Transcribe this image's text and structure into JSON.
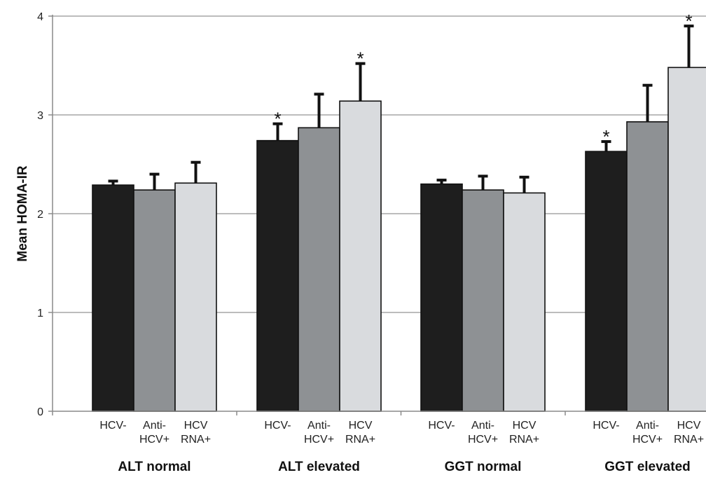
{
  "chart_data": {
    "type": "bar",
    "title": "",
    "ylabel": "Mean HOMA-IR",
    "ylim": [
      0,
      4
    ],
    "yticks": [
      0,
      1,
      2,
      3,
      4
    ],
    "grid": true,
    "groups": [
      {
        "label": "ALT normal",
        "bars": [
          {
            "label_lines": [
              "HCV-"
            ],
            "value": 2.29,
            "error": 0.04,
            "significant": false,
            "color": "#1e1e1e"
          },
          {
            "label_lines": [
              "Anti-",
              "HCV+"
            ],
            "value": 2.24,
            "error": 0.16,
            "significant": false,
            "color": "#8e9194"
          },
          {
            "label_lines": [
              "HCV",
              "RNA+"
            ],
            "value": 2.31,
            "error": 0.21,
            "significant": false,
            "color": "#d9dbde"
          }
        ]
      },
      {
        "label": "ALT elevated",
        "bars": [
          {
            "label_lines": [
              "HCV-"
            ],
            "value": 2.74,
            "error": 0.17,
            "significant": true,
            "color": "#1e1e1e"
          },
          {
            "label_lines": [
              "Anti-",
              "HCV+"
            ],
            "value": 2.87,
            "error": 0.34,
            "significant": false,
            "color": "#8e9194"
          },
          {
            "label_lines": [
              "HCV",
              "RNA+"
            ],
            "value": 3.14,
            "error": 0.38,
            "significant": true,
            "color": "#d9dbde"
          }
        ]
      },
      {
        "label": "GGT normal",
        "bars": [
          {
            "label_lines": [
              "HCV-"
            ],
            "value": 2.3,
            "error": 0.04,
            "significant": false,
            "color": "#1e1e1e"
          },
          {
            "label_lines": [
              "Anti-",
              "HCV+"
            ],
            "value": 2.24,
            "error": 0.14,
            "significant": false,
            "color": "#8e9194"
          },
          {
            "label_lines": [
              "HCV",
              "RNA+"
            ],
            "value": 2.21,
            "error": 0.16,
            "significant": false,
            "color": "#d9dbde"
          }
        ]
      },
      {
        "label": "GGT elevated",
        "bars": [
          {
            "label_lines": [
              "HCV-"
            ],
            "value": 2.63,
            "error": 0.1,
            "significant": true,
            "color": "#1e1e1e"
          },
          {
            "label_lines": [
              "Anti-",
              "HCV+"
            ],
            "value": 2.93,
            "error": 0.37,
            "significant": false,
            "color": "#8e9194"
          },
          {
            "label_lines": [
              "HCV",
              "RNA+"
            ],
            "value": 3.48,
            "error": 0.42,
            "significant": true,
            "color": "#d9dbde"
          }
        ]
      }
    ],
    "significance_marker": "*"
  }
}
